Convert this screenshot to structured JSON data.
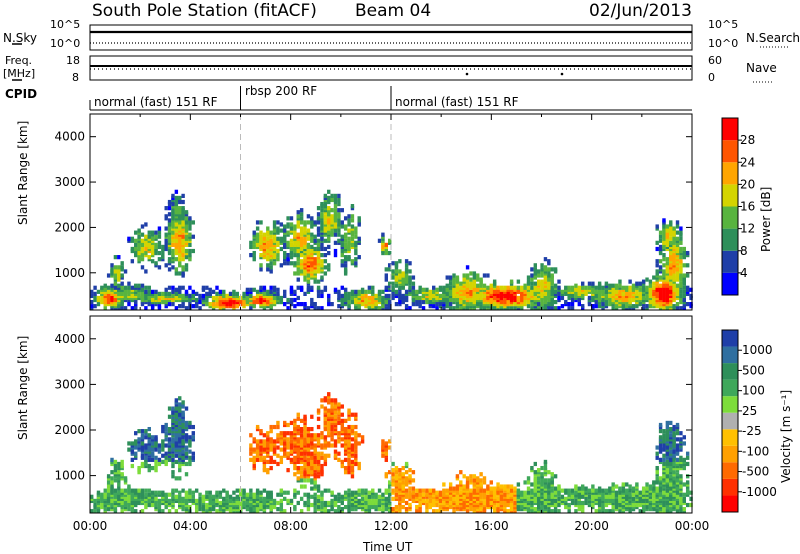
{
  "header": {
    "station": "South Pole Station (fitACF)",
    "beam": "Beam 04",
    "date": "02/Jun/2013"
  },
  "top_panels": {
    "nsky_label": "N.Sky",
    "nsearch_label": "N.Search",
    "nsky_ticks": [
      "10^5",
      "10^0"
    ],
    "nsearch_ticks": [
      "10^5",
      "10^0"
    ],
    "freq_label_1": "Freq.",
    "freq_label_2": "[MHz]",
    "freq_ticks": [
      "18",
      "8"
    ],
    "nave_label": "Nave",
    "nave_ticks": [
      "60",
      "0"
    ],
    "cpid_label": "CPID",
    "cpid_segments": [
      {
        "label": "normal (fast) 151 RF",
        "start_h": 0,
        "end_h": 6
      },
      {
        "label": "rbsp 200 RF",
        "start_h": 6,
        "end_h": 12
      },
      {
        "label": "normal (fast) 151 RF",
        "start_h": 12,
        "end_h": 24
      }
    ]
  },
  "chart_data": [
    {
      "type": "heatmap",
      "panel": "power",
      "ylabel": "Slant Range [km]",
      "xlim_hours": [
        0,
        24
      ],
      "ylim_km": [
        180,
        4500
      ],
      "yticks": [
        "1000",
        "2000",
        "3000",
        "4000"
      ],
      "colorbar_label": "Power [dB]",
      "colorbar_ticks": [
        "4",
        "8",
        "12",
        "16",
        "20",
        "24",
        "28"
      ],
      "colors": [
        "#0000ff",
        "#1f3fa8",
        "#2e8f5a",
        "#58b43f",
        "#d4d400",
        "#ffa500",
        "#ff5500",
        "#ff0000"
      ]
    },
    {
      "type": "heatmap",
      "panel": "velocity",
      "ylabel": "Slant Range [km]",
      "xlabel": "Time UT",
      "xlim_hours": [
        0,
        24
      ],
      "ylim_km": [
        180,
        4500
      ],
      "yticks": [
        "1000",
        "2000",
        "3000",
        "4000"
      ],
      "xticks": [
        "00:00",
        "04:00",
        "08:00",
        "12:00",
        "16:00",
        "20:00",
        "00:00"
      ],
      "colorbar_label": "Velocity [m s⁻¹]",
      "colorbar_ticks": [
        "1000",
        "500",
        "100",
        "25",
        "-25",
        "-100",
        "-500",
        "-1000"
      ],
      "colors": [
        "#1f3fa8",
        "#2f6fa0",
        "#2e8f5a",
        "#3fa85a",
        "#7ddc3a",
        "#b0b0b0",
        "#ffc000",
        "#ffa000",
        "#ff6a00",
        "#ff3000",
        "#ff0000"
      ]
    }
  ]
}
